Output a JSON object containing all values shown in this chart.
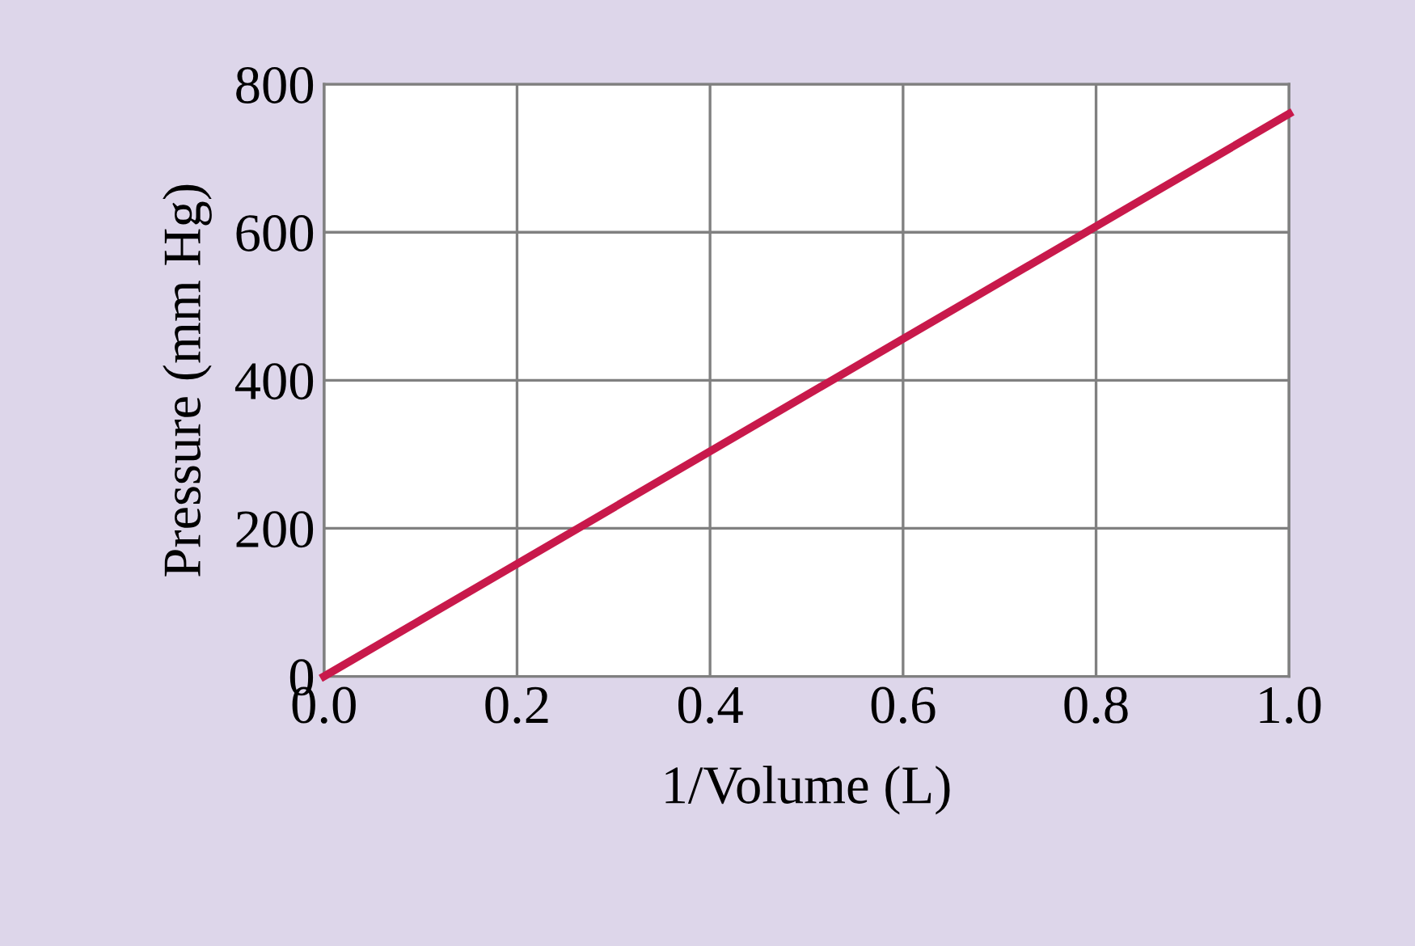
{
  "chart_data": {
    "type": "line",
    "xlabel": "1/Volume (L)",
    "ylabel": "Pressure (mm Hg)",
    "x": [
      0.0,
      1.0
    ],
    "series": [
      {
        "color": "#c8194b",
        "values": [
          0,
          760
        ]
      }
    ],
    "xlim": [
      0.0,
      1.0
    ],
    "ylim": [
      0,
      800
    ],
    "xticks": [
      {
        "value": 0.0,
        "label": "0.0"
      },
      {
        "value": 0.2,
        "label": "0.2"
      },
      {
        "value": 0.4,
        "label": "0.4"
      },
      {
        "value": 0.6,
        "label": "0.6"
      },
      {
        "value": 0.8,
        "label": "0.8"
      },
      {
        "value": 1.0,
        "label": "1.0"
      }
    ],
    "yticks": [
      0,
      200,
      400,
      600,
      800
    ],
    "grid": true,
    "marker": "none",
    "line_style": "solid"
  }
}
